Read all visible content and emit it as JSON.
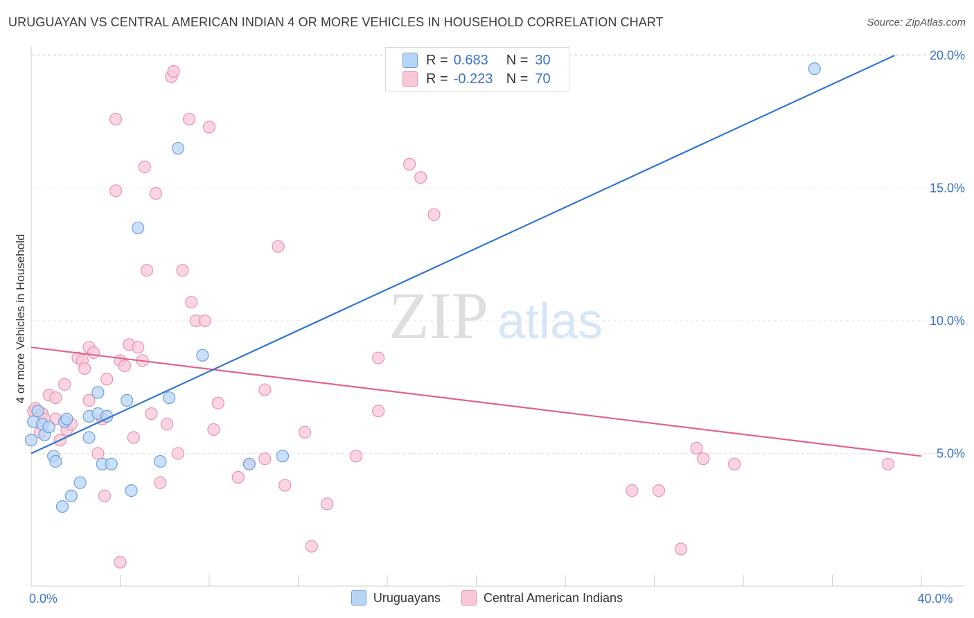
{
  "title": "URUGUAYAN VS CENTRAL AMERICAN INDIAN 4 OR MORE VEHICLES IN HOUSEHOLD CORRELATION CHART",
  "source": "Source: ZipAtlas.com",
  "watermark": {
    "zip": "ZIP",
    "atlas": "atlas"
  },
  "legend": {
    "rows": [
      {
        "r_label": "R =",
        "r_value": "0.683",
        "n_label": "N =",
        "n_value": "30"
      },
      {
        "r_label": "R =",
        "r_value": "-0.223",
        "n_label": "N =",
        "n_value": "70"
      }
    ]
  },
  "bottom_legend": [
    "Uruguayans",
    "Central American Indians"
  ],
  "colors": {
    "blue_fill": "#b8d4f5",
    "blue_stroke": "#6fa0dc",
    "blue_line": "#2f75d0",
    "pink_fill": "#f9c8d8",
    "pink_stroke": "#e991ad",
    "pink_line": "#e0638d",
    "tick_text": "#3b72c4",
    "grid": "#e3e3e3"
  },
  "chart_data": {
    "type": "scatter",
    "title": "URUGUAYAN VS CENTRAL AMERICAN INDIAN 4 OR MORE VEHICLES IN HOUSEHOLD CORRELATION CHART",
    "xlabel": "",
    "ylabel": "4 or more Vehicles in Household",
    "xlim": [
      0,
      40
    ],
    "ylim": [
      0,
      20.5
    ],
    "x_tick_labels": [
      {
        "value": 0,
        "label": "0.0%"
      },
      {
        "value": 40,
        "label": "40.0%"
      }
    ],
    "y_tick_labels": [
      {
        "value": 5,
        "label": "5.0%"
      },
      {
        "value": 10,
        "label": "10.0%"
      },
      {
        "value": 15,
        "label": "15.0%"
      },
      {
        "value": 20,
        "label": "20.0%"
      }
    ],
    "x_minor_ticks": [
      4,
      8,
      12,
      16,
      20,
      24,
      28,
      32,
      36,
      40
    ],
    "grid": true,
    "legend_position": "top-center",
    "series": [
      {
        "name": "Uruguayans",
        "color": "#6fa0dc",
        "trend": {
          "x": [
            0,
            38.8
          ],
          "y": [
            5.0,
            20.0
          ]
        },
        "points": [
          [
            0.0,
            5.5
          ],
          [
            0.1,
            6.2
          ],
          [
            0.5,
            6.1
          ],
          [
            0.6,
            5.7
          ],
          [
            0.8,
            6.0
          ],
          [
            1.0,
            4.9
          ],
          [
            1.1,
            4.7
          ],
          [
            1.4,
            3.0
          ],
          [
            1.5,
            6.2
          ],
          [
            1.6,
            6.3
          ],
          [
            1.8,
            3.4
          ],
          [
            2.2,
            3.9
          ],
          [
            2.6,
            5.6
          ],
          [
            2.6,
            6.4
          ],
          [
            3.0,
            6.5
          ],
          [
            3.0,
            7.3
          ],
          [
            3.2,
            4.6
          ],
          [
            3.4,
            6.4
          ],
          [
            3.6,
            4.6
          ],
          [
            4.3,
            7.0
          ],
          [
            4.5,
            3.6
          ],
          [
            4.8,
            13.5
          ],
          [
            5.8,
            4.7
          ],
          [
            6.2,
            7.1
          ],
          [
            6.6,
            16.5
          ],
          [
            7.7,
            8.7
          ],
          [
            9.8,
            4.6
          ],
          [
            11.3,
            4.9
          ],
          [
            35.2,
            19.5
          ],
          [
            0.3,
            6.6
          ]
        ]
      },
      {
        "name": "Central American Indians",
        "color": "#e991ad",
        "trend": {
          "x": [
            0,
            40
          ],
          "y": [
            9.0,
            4.9
          ]
        },
        "points": [
          [
            0.1,
            6.6
          ],
          [
            0.2,
            6.7
          ],
          [
            0.4,
            5.8
          ],
          [
            0.5,
            6.5
          ],
          [
            0.6,
            6.3
          ],
          [
            0.8,
            7.2
          ],
          [
            1.1,
            6.3
          ],
          [
            1.1,
            7.1
          ],
          [
            1.3,
            5.5
          ],
          [
            1.5,
            7.6
          ],
          [
            1.6,
            5.9
          ],
          [
            1.8,
            6.1
          ],
          [
            2.1,
            8.6
          ],
          [
            2.3,
            8.5
          ],
          [
            2.4,
            8.2
          ],
          [
            2.6,
            9.0
          ],
          [
            2.6,
            7.0
          ],
          [
            2.8,
            8.8
          ],
          [
            3.0,
            5.0
          ],
          [
            3.2,
            6.3
          ],
          [
            3.3,
            3.4
          ],
          [
            3.4,
            7.8
          ],
          [
            3.8,
            17.6
          ],
          [
            3.8,
            14.9
          ],
          [
            4.0,
            8.5
          ],
          [
            4.0,
            0.9
          ],
          [
            4.2,
            8.3
          ],
          [
            4.4,
            9.1
          ],
          [
            4.6,
            5.6
          ],
          [
            4.8,
            9.0
          ],
          [
            5.0,
            8.5
          ],
          [
            5.1,
            15.8
          ],
          [
            5.2,
            11.9
          ],
          [
            5.4,
            6.5
          ],
          [
            5.6,
            14.8
          ],
          [
            5.8,
            3.9
          ],
          [
            6.1,
            6.1
          ],
          [
            6.3,
            19.2
          ],
          [
            6.4,
            19.4
          ],
          [
            6.6,
            5.0
          ],
          [
            6.8,
            11.9
          ],
          [
            7.1,
            17.6
          ],
          [
            7.2,
            10.7
          ],
          [
            7.4,
            10.0
          ],
          [
            7.8,
            10.0
          ],
          [
            8.0,
            17.3
          ],
          [
            8.2,
            5.9
          ],
          [
            8.4,
            6.9
          ],
          [
            9.3,
            4.1
          ],
          [
            9.8,
            4.6
          ],
          [
            10.5,
            7.4
          ],
          [
            10.5,
            4.8
          ],
          [
            11.1,
            12.8
          ],
          [
            11.4,
            3.8
          ],
          [
            12.3,
            5.8
          ],
          [
            12.6,
            1.5
          ],
          [
            13.3,
            3.1
          ],
          [
            14.6,
            4.9
          ],
          [
            15.6,
            8.6
          ],
          [
            15.6,
            6.6
          ],
          [
            17.0,
            15.9
          ],
          [
            17.5,
            15.4
          ],
          [
            18.1,
            14.0
          ],
          [
            27.0,
            3.6
          ],
          [
            28.2,
            3.6
          ],
          [
            29.2,
            1.4
          ],
          [
            29.9,
            5.2
          ],
          [
            30.2,
            4.8
          ],
          [
            31.6,
            4.6
          ],
          [
            38.5,
            4.6
          ]
        ]
      }
    ]
  }
}
